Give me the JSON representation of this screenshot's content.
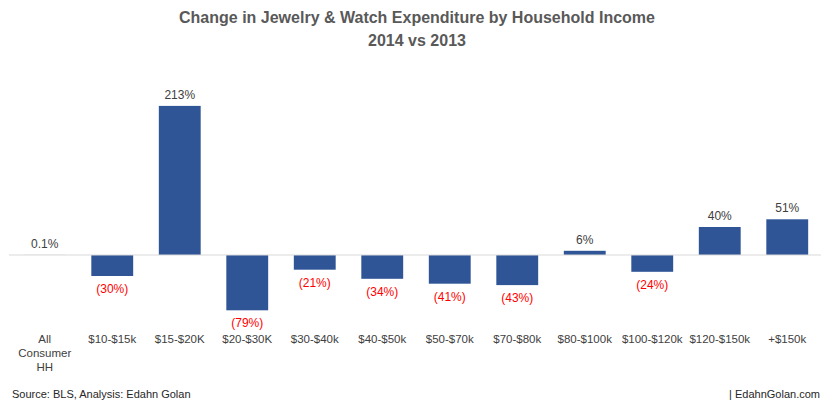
{
  "chart_data": {
    "type": "bar",
    "title": "Change in Jewelry & Watch Expenditure by Household Income",
    "subtitle": "2014 vs 2013",
    "categories": [
      "All Consumer HH",
      "$10-$15k",
      "$15-$20K",
      "$20-$30K",
      "$30-$40k",
      "$40-$50k",
      "$50-$70k",
      "$70-$80k",
      "$80-$100k",
      "$100-$120k",
      "$120-$150k",
      "+$150k"
    ],
    "values": [
      0.1,
      -30,
      213,
      -79,
      -21,
      -34,
      -41,
      -43,
      6,
      -24,
      40,
      51
    ],
    "value_labels": [
      "0.1%",
      "(30%)",
      "213%",
      "(79%)",
      "(21%)",
      "(34%)",
      "(41%)",
      "(43%)",
      "6%",
      "(24%)",
      "40%",
      "51%"
    ],
    "color": "#2f5597",
    "ylim": [
      -100,
      250
    ],
    "grid": false,
    "data_labels": true,
    "tick_labels": "x",
    "annotations": [
      "Source: BLS, Analysis: Edahn Golan",
      "| EdahnGolan.com"
    ]
  }
}
